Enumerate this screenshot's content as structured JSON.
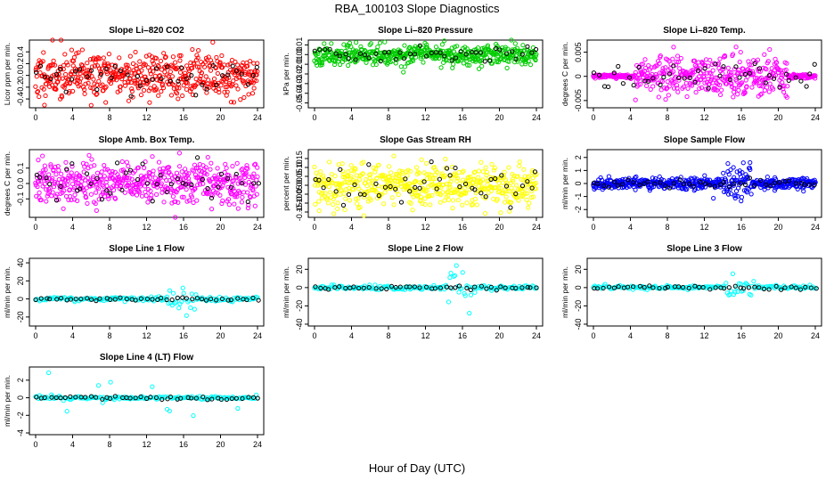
{
  "figure_title": "RBA_100103  Slope Diagnostics",
  "x_axis_label": "Hour of Day (UTC)",
  "colors": {
    "highlight": "#000000",
    "red": "#ff0000",
    "green": "#00cc00",
    "magenta": "#ff00ff",
    "yellow": "#ffff00",
    "blue": "#0000ff",
    "cyan": "#00ffff"
  },
  "chart_data": [
    {
      "type": "scatter",
      "title": "Slope Li–820 CO2",
      "ylabel": "Licor ppm per min.",
      "xlim": [
        0,
        24
      ],
      "ylim": [
        -0.55,
        0.6
      ],
      "xticks": [
        0,
        4,
        8,
        12,
        16,
        20,
        24
      ],
      "yticks": [
        -0.4,
        -0.2,
        0.0,
        0.2,
        0.4
      ],
      "ytick_labels": [
        "-0.4",
        "-0.2",
        "0.0",
        "0.2",
        "0.4"
      ],
      "color": "#ff0000",
      "spread": 0.2,
      "kind": "noise",
      "seed": 11
    },
    {
      "type": "scatter",
      "title": "Slope Li–820 Pressure",
      "ylabel": "kPa per min.",
      "xlim": [
        0,
        24
      ],
      "ylim": [
        -0.055,
        0.015
      ],
      "xticks": [
        0,
        4,
        8,
        12,
        16,
        20,
        24
      ],
      "yticks": [
        -0.05,
        -0.04,
        -0.03,
        -0.02,
        -0.01,
        0.0,
        0.01
      ],
      "ytick_labels": [
        "-0.05",
        "-0.04",
        "-0.03",
        "-0.02",
        "-0.01",
        "0.00",
        "0.01"
      ],
      "color": "#00cc00",
      "spread": 0.005,
      "kind": "noise",
      "seed": 23
    },
    {
      "type": "scatter",
      "title": "Slope Li–820 Temp.",
      "ylabel": "degrees C per min.",
      "xlim": [
        0,
        24
      ],
      "ylim": [
        -0.0065,
        0.0075
      ],
      "xticks": [
        0,
        4,
        8,
        12,
        16,
        20,
        24
      ],
      "yticks": [
        -0.005,
        0.0,
        0.005
      ],
      "ytick_labels": [
        "-0.005",
        "0",
        "0.005"
      ],
      "color": "#ff00ff",
      "spread": 0.002,
      "kind": "temp",
      "seed": 37
    },
    {
      "type": "scatter",
      "title": "Slope Amb. Box Temp.",
      "ylabel": "degrees C per min.",
      "xlim": [
        0,
        24
      ],
      "ylim": [
        -0.22,
        0.22
      ],
      "xticks": [
        0,
        4,
        8,
        12,
        16,
        20,
        24
      ],
      "yticks": [
        -0.1,
        0.0,
        0.1
      ],
      "ytick_labels": [
        "-0.1",
        "0.0",
        "0.1"
      ],
      "color": "#ff00ff",
      "spread": 0.07,
      "kind": "noise",
      "seed": 41
    },
    {
      "type": "scatter",
      "title": "Slope Gas Stream RH",
      "ylabel": "percent per min.",
      "xlim": [
        0,
        24
      ],
      "ylim": [
        -0.18,
        0.2
      ],
      "xticks": [
        0,
        4,
        8,
        12,
        16,
        20,
        24
      ],
      "yticks": [
        -0.15,
        -0.1,
        -0.05,
        0.0,
        0.05,
        0.1,
        0.15
      ],
      "ytick_labels": [
        "-0.15",
        "-0.10",
        "-0.05",
        "0.00",
        "0.05",
        "0.10",
        "0.15"
      ],
      "color": "#ffff00",
      "spread": 0.06,
      "kind": "noise",
      "seed": 53
    },
    {
      "type": "scatter",
      "title": "Slope Sample Flow",
      "ylabel": "ml/min per min.",
      "xlim": [
        0,
        24
      ],
      "ylim": [
        -2.6,
        2.6
      ],
      "xticks": [
        0,
        4,
        8,
        12,
        16,
        20,
        24
      ],
      "yticks": [
        -2,
        -1,
        0,
        1,
        2
      ],
      "ytick_labels": [
        "-2",
        "-1",
        "0",
        "1",
        "2"
      ],
      "color": "#0000ff",
      "spread": 0.2,
      "kind": "spiky",
      "seed": 61
    },
    {
      "type": "scatter",
      "title": "Slope Line 1 Flow",
      "ylabel": "ml/min per min.",
      "xlim": [
        0,
        24
      ],
      "ylim": [
        -30,
        45
      ],
      "xticks": [
        0,
        4,
        8,
        12,
        16,
        20,
        24
      ],
      "yticks": [
        -20,
        0,
        20,
        40
      ],
      "ytick_labels": [
        "-20",
        "0",
        "20",
        "40"
      ],
      "color": "#00ffff",
      "spread": 1.2,
      "kind": "flow",
      "seed": 71
    },
    {
      "type": "scatter",
      "title": "Slope Line 2 Flow",
      "ylabel": "ml/min per min.",
      "xlim": [
        0,
        24
      ],
      "ylim": [
        -42,
        32
      ],
      "xticks": [
        0,
        4,
        8,
        12,
        16,
        20,
        24
      ],
      "yticks": [
        -40,
        -20,
        0,
        20
      ],
      "ytick_labels": [
        "-40",
        "-20",
        "0",
        "20"
      ],
      "color": "#00ffff",
      "spread": 1.2,
      "kind": "flow",
      "seed": 83
    },
    {
      "type": "scatter",
      "title": "Slope Line 3 Flow",
      "ylabel": "ml/min per min.",
      "xlim": [
        0,
        24
      ],
      "ylim": [
        -42,
        32
      ],
      "xticks": [
        0,
        4,
        8,
        12,
        16,
        20,
        24
      ],
      "yticks": [
        -40,
        -20,
        0,
        20
      ],
      "ytick_labels": [
        "-40",
        "-20",
        "0",
        "20"
      ],
      "color": "#00ffff",
      "spread": 1.2,
      "kind": "flow",
      "seed": 97
    },
    {
      "type": "scatter",
      "title": "Slope Line 4 (LT) Flow",
      "ylabel": "ml/min per min.",
      "xlim": [
        0,
        24
      ],
      "ylim": [
        -4.2,
        3.5
      ],
      "xticks": [
        0,
        4,
        8,
        12,
        16,
        20,
        24
      ],
      "yticks": [
        -4,
        -2,
        0,
        2
      ],
      "ytick_labels": [
        "-4",
        "-2",
        "0",
        "2"
      ],
      "color": "#00ffff",
      "spread": 0.1,
      "kind": "sparse",
      "seed": 101
    }
  ]
}
